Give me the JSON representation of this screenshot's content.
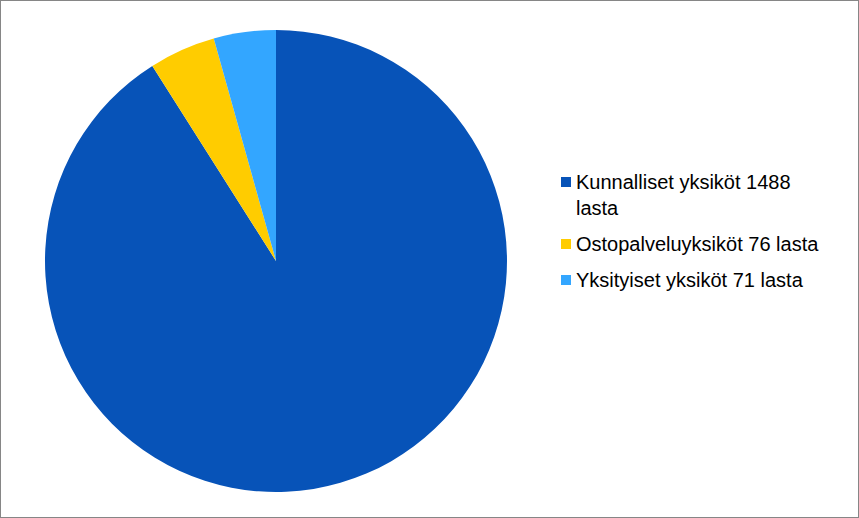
{
  "chart_data": {
    "type": "pie",
    "categories": [
      "Kunnalliset yksiköt 1488 lasta",
      "Ostopalveluyksiköt 76 lasta",
      "Yksityiset yksiköt 71 lasta"
    ],
    "values": [
      1488,
      76,
      71
    ],
    "colors": [
      "#0753B8",
      "#FFCC00",
      "#33A6FF"
    ],
    "legend": "right"
  }
}
